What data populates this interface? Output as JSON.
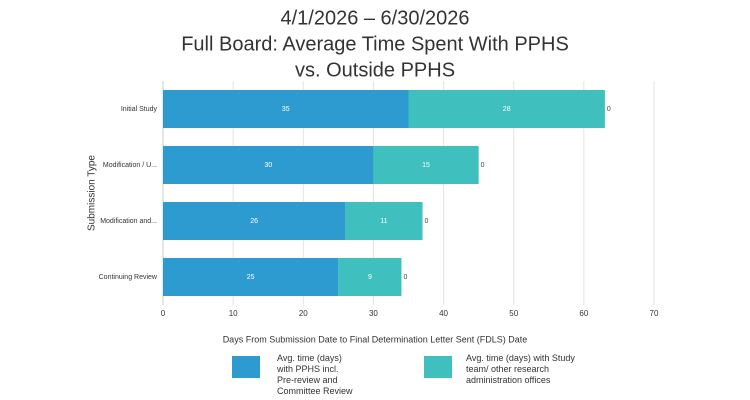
{
  "chart_data": {
    "type": "stacked-bar-horizontal",
    "title": [
      "4/1/2026 – 6/30/2026",
      "Full Board: Average Time Spent With PPHS",
      "vs. Outside PPHS"
    ],
    "categories": [
      "Initial Study",
      "Modification / U...",
      "Modification and...",
      "Continuing Review"
    ],
    "series": [
      {
        "name": "Avg. time (days) with PPHS incl. Pre-review and Committee Review",
        "color": "#2e9bd0",
        "values": [
          35,
          30,
          26,
          25
        ]
      },
      {
        "name": "Avg. time (days) with Study team/ other research administration offices",
        "color": "#3fbfbd",
        "values": [
          28,
          15,
          11,
          9
        ]
      },
      {
        "color": "#444444",
        "values": [
          0,
          0,
          0,
          0
        ]
      }
    ],
    "xlim": [
      0,
      70
    ],
    "xticks": [
      0,
      10,
      20,
      30,
      40,
      50,
      60,
      70
    ],
    "grid": true,
    "xlabel": "Days From Submission Date to Final Determination Letter Sent (FDLS) Date",
    "ylabel": "Submission Type",
    "legend": "bottom"
  }
}
